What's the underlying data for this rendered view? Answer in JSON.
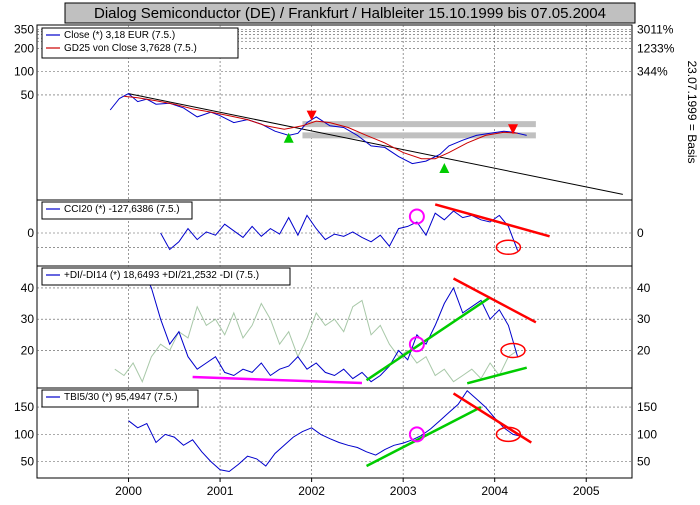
{
  "title": "Dialog Semiconductor (DE) / Frankfurt / Halbleiter 15.10.1999 bis 07.05.2004",
  "basis_label": "23.07.1999 = Basis",
  "x_ticks": [
    "2000",
    "2001",
    "2002",
    "2003",
    "2004",
    "2005"
  ],
  "colors": {
    "price": "#0000cc",
    "gd25": "#cc0000",
    "trend": "#000000",
    "grey_band": "#c0c0c0",
    "green": "#00cc00",
    "magenta": "#ff00ff",
    "red": "#ff0000",
    "dmi_faint": "#a8c8a8"
  },
  "chart_data": [
    {
      "type": "line",
      "panel": "price",
      "scale": "log",
      "legend": [
        "Close (*) 3,18 EUR (7.5.)",
        "GD25 von Close 3,7628 (7.5.)"
      ],
      "y_ticks_left": [
        "350",
        "200",
        "100",
        "50"
      ],
      "y_ticks_right": [
        "3011%",
        "1233%",
        "344%"
      ],
      "series": [
        {
          "name": "Close (*) 3,18 EUR (7.5.)",
          "x": [
            1999.8,
            1999.9,
            2000.0,
            2000.1,
            2000.2,
            2000.3,
            2000.45,
            2000.6,
            2000.75,
            2000.9,
            2001.0,
            2001.15,
            2001.3,
            2001.45,
            2001.6,
            2001.75,
            2001.85,
            2001.95,
            2002.05,
            2002.2,
            2002.35,
            2002.5,
            2002.65,
            2002.8,
            2002.95,
            2003.1,
            2003.25,
            2003.4,
            2003.5,
            2003.65,
            2003.8,
            2003.95,
            2004.1,
            2004.2,
            2004.35
          ],
          "values": [
            32,
            45,
            52,
            41,
            44,
            38,
            39,
            34,
            26,
            30,
            27,
            22,
            24,
            21,
            17,
            15,
            16,
            22,
            26,
            20,
            19,
            15,
            11,
            10.5,
            8,
            6.5,
            7,
            8.5,
            11,
            13,
            15,
            16,
            17,
            16.5,
            15
          ]
        },
        {
          "name": "GD25 von Close 3,7628 (7.5.)",
          "x": [
            1999.95,
            2000.1,
            2000.3,
            2000.5,
            2000.7,
            2000.9,
            2001.1,
            2001.3,
            2001.5,
            2001.7,
            2001.9,
            2002.05,
            2002.2,
            2002.4,
            2002.6,
            2002.8,
            2003.0,
            2003.2,
            2003.35,
            2003.5,
            2003.7,
            2003.9,
            2004.1,
            2004.25
          ],
          "values": [
            48,
            46,
            42,
            38,
            33,
            30,
            27,
            24,
            20,
            18,
            20,
            23,
            22,
            19,
            15,
            12,
            9,
            7.5,
            7.5,
            9,
            12,
            15,
            16.5,
            16
          ]
        }
      ],
      "trendline": {
        "x": [
          2000.0,
          2005.4
        ],
        "values": [
          52,
          2.6
        ]
      },
      "grey_bands": [
        {
          "x": [
            2001.9,
            2004.45
          ],
          "value": 21
        },
        {
          "x": [
            2001.9,
            2004.45
          ],
          "value": 15
        }
      ],
      "markers": [
        {
          "shape": "triangle-up",
          "color": "green",
          "x": 2001.75,
          "value": 14
        },
        {
          "shape": "triangle-down",
          "color": "red",
          "x": 2002.0,
          "value": 27
        },
        {
          "shape": "triangle-up",
          "color": "green",
          "x": 2003.45,
          "value": 5.7
        },
        {
          "shape": "triangle-down",
          "color": "red",
          "x": 2004.2,
          "value": 18
        }
      ]
    },
    {
      "type": "line",
      "panel": "cci",
      "legend": [
        "CCI20 (*) -127,6386 (7.5.)"
      ],
      "y_ticks_left": [
        "0"
      ],
      "y_ticks_right": [
        "0"
      ],
      "ylim": [
        -300,
        300
      ],
      "series": [
        {
          "name": "CCI20 (*) -127,6386 (7.5.)",
          "x": [
            2000.35,
            2000.45,
            2000.55,
            2000.65,
            2000.75,
            2000.85,
            2000.95,
            2001.05,
            2001.15,
            2001.25,
            2001.35,
            2001.45,
            2001.55,
            2001.65,
            2001.75,
            2001.85,
            2001.95,
            2002.05,
            2002.15,
            2002.25,
            2002.35,
            2002.45,
            2002.55,
            2002.65,
            2002.75,
            2002.85,
            2002.95,
            2003.05,
            2003.15,
            2003.25,
            2003.35,
            2003.45,
            2003.55,
            2003.65,
            2003.75,
            2003.85,
            2003.95,
            2004.05,
            2004.15,
            2004.25
          ],
          "values": [
            0,
            -150,
            -80,
            40,
            -60,
            10,
            -20,
            80,
            20,
            -40,
            60,
            -30,
            40,
            -10,
            140,
            -20,
            160,
            40,
            -60,
            -10,
            -30,
            10,
            -40,
            -80,
            -20,
            -120,
            40,
            60,
            100,
            -20,
            180,
            120,
            200,
            140,
            160,
            120,
            100,
            160,
            60,
            -160
          ]
        }
      ],
      "annotations": [
        {
          "shape": "circle",
          "color": "magenta",
          "x": 2003.15,
          "value": 150
        },
        {
          "shape": "line",
          "color": "red",
          "x": [
            2003.35,
            2004.6
          ],
          "values": [
            260,
            -30
          ]
        },
        {
          "shape": "ellipse",
          "color": "red",
          "x": 2004.15,
          "value": -130
        }
      ]
    },
    {
      "type": "line",
      "panel": "dmi",
      "legend": [
        "+DI/-DI14 (*) 18,6493 +DI/21,2532 -DI (7.5.)"
      ],
      "y_ticks_left": [
        "40",
        "30",
        "20"
      ],
      "y_ticks_right": [
        "40",
        "30",
        "20"
      ],
      "ylim": [
        8,
        47
      ],
      "series": [
        {
          "name": "+DI",
          "x": [
            2000.15,
            2000.25,
            2000.35,
            2000.45,
            2000.55,
            2000.65,
            2000.75,
            2000.85,
            2000.95,
            2001.05,
            2001.15,
            2001.25,
            2001.35,
            2001.45,
            2001.55,
            2001.65,
            2001.75,
            2001.85,
            2001.95,
            2002.05,
            2002.15,
            2002.25,
            2002.35,
            2002.45,
            2002.55,
            2002.65,
            2002.75,
            2002.85,
            2002.95,
            2003.05,
            2003.15,
            2003.25,
            2003.35,
            2003.45,
            2003.55,
            2003.65,
            2003.75,
            2003.85,
            2003.95,
            2004.05,
            2004.15,
            2004.25
          ],
          "values": [
            46,
            40,
            30,
            22,
            26,
            18,
            14,
            16,
            18,
            13,
            12,
            14,
            13,
            16,
            12,
            14,
            15,
            18,
            14,
            16,
            13,
            12,
            14,
            11,
            13,
            10,
            12,
            15,
            20,
            17,
            25,
            22,
            28,
            35,
            40,
            32,
            34,
            36,
            30,
            33,
            28,
            18
          ]
        },
        {
          "name": "-DI",
          "x": [
            1999.85,
            1999.95,
            2000.05,
            2000.15,
            2000.25,
            2000.35,
            2000.45,
            2000.55,
            2000.65,
            2000.75,
            2000.85,
            2000.95,
            2001.05,
            2001.15,
            2001.25,
            2001.35,
            2001.45,
            2001.55,
            2001.65,
            2001.75,
            2001.85,
            2001.95,
            2002.05,
            2002.15,
            2002.25,
            2002.35,
            2002.45,
            2002.55,
            2002.65,
            2002.75,
            2002.85,
            2002.95,
            2003.05,
            2003.15,
            2003.25,
            2003.35,
            2003.45,
            2003.55,
            2003.65,
            2003.75,
            2003.85,
            2003.95,
            2004.05,
            2004.15,
            2004.25
          ],
          "values": [
            14,
            12,
            16,
            10,
            18,
            22,
            20,
            26,
            24,
            34,
            28,
            30,
            25,
            32,
            24,
            28,
            35,
            30,
            22,
            26,
            18,
            24,
            32,
            28,
            30,
            26,
            34,
            36,
            25,
            28,
            22,
            18,
            20,
            16,
            18,
            12,
            14,
            10,
            12,
            14,
            11,
            16,
            12,
            18,
            20
          ]
        }
      ],
      "annotations": [
        {
          "shape": "line",
          "color": "magenta",
          "x": [
            2000.7,
            2002.55
          ],
          "values": [
            11.5,
            9.6
          ]
        },
        {
          "shape": "line",
          "color": "green",
          "x": [
            2002.6,
            2003.95
          ],
          "values": [
            10.5,
            37
          ]
        },
        {
          "shape": "line",
          "color": "green",
          "x": [
            2003.7,
            2004.35
          ],
          "values": [
            9.5,
            14.5
          ]
        },
        {
          "shape": "line",
          "color": "red",
          "x": [
            2003.55,
            2004.45
          ],
          "values": [
            43,
            29
          ]
        },
        {
          "shape": "circle",
          "color": "magenta",
          "x": 2003.15,
          "value": 22
        },
        {
          "shape": "ellipse",
          "color": "red",
          "x": 2004.2,
          "value": 20
        }
      ]
    },
    {
      "type": "line",
      "panel": "tbi",
      "legend": [
        "TBI5/30 (*) 95,4947 (7.5.)"
      ],
      "y_ticks_left": [
        "150",
        "100",
        "50"
      ],
      "y_ticks_right": [
        "150",
        "100",
        "50"
      ],
      "ylim": [
        20,
        185
      ],
      "series": [
        {
          "name": "TBI5/30 (*) 95,4947 (7.5.)",
          "x": [
            2000.0,
            2000.1,
            2000.2,
            2000.3,
            2000.4,
            2000.5,
            2000.6,
            2000.7,
            2000.8,
            2000.9,
            2001.0,
            2001.1,
            2001.2,
            2001.3,
            2001.4,
            2001.5,
            2001.6,
            2001.7,
            2001.8,
            2001.9,
            2002.0,
            2002.1,
            2002.2,
            2002.3,
            2002.4,
            2002.5,
            2002.6,
            2002.7,
            2002.8,
            2002.9,
            2003.0,
            2003.1,
            2003.2,
            2003.3,
            2003.4,
            2003.5,
            2003.6,
            2003.7,
            2003.8,
            2003.9,
            2004.0,
            2004.1,
            2004.2,
            2004.3
          ],
          "values": [
            125,
            112,
            120,
            85,
            100,
            95,
            80,
            90,
            68,
            50,
            35,
            32,
            45,
            60,
            55,
            42,
            65,
            80,
            95,
            105,
            112,
            100,
            92,
            85,
            80,
            76,
            68,
            62,
            72,
            80,
            84,
            90,
            98,
            110,
            125,
            140,
            155,
            180,
            165,
            150,
            130,
            112,
            100,
            96
          ]
        }
      ],
      "annotations": [
        {
          "shape": "line",
          "color": "green",
          "x": [
            2002.6,
            2003.85
          ],
          "values": [
            42,
            150
          ]
        },
        {
          "shape": "line",
          "color": "red",
          "x": [
            2003.55,
            2004.4
          ],
          "values": [
            175,
            85
          ]
        },
        {
          "shape": "circle",
          "color": "magenta",
          "x": 2003.15,
          "value": 100
        },
        {
          "shape": "ellipse",
          "color": "red",
          "x": 2004.15,
          "value": 100
        }
      ]
    }
  ]
}
